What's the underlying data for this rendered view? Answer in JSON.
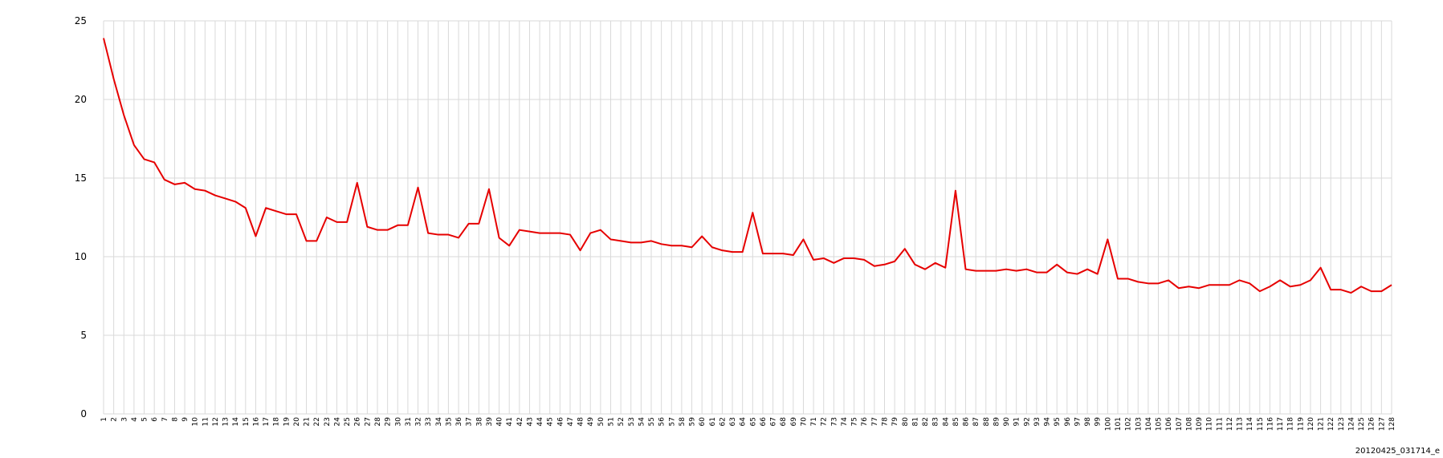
{
  "chart_data": {
    "type": "line",
    "title": "",
    "xlabel": "",
    "ylabel": "",
    "ylim": [
      0,
      25
    ],
    "y_ticks": [
      0,
      5,
      10,
      15,
      20,
      25
    ],
    "grid": true,
    "line_color": "#e60000",
    "x": [
      1,
      2,
      3,
      4,
      5,
      6,
      7,
      8,
      9,
      10,
      11,
      12,
      13,
      14,
      15,
      16,
      17,
      18,
      19,
      20,
      21,
      22,
      23,
      24,
      25,
      26,
      27,
      28,
      29,
      30,
      31,
      32,
      33,
      34,
      35,
      36,
      37,
      38,
      39,
      40,
      41,
      42,
      43,
      44,
      45,
      46,
      47,
      48,
      49,
      50,
      51,
      52,
      53,
      54,
      55,
      56,
      57,
      58,
      59,
      60,
      61,
      62,
      63,
      64,
      65,
      66,
      67,
      68,
      69,
      70,
      71,
      72,
      73,
      74,
      75,
      76,
      77,
      78,
      79,
      80,
      81,
      82,
      83,
      84,
      85,
      86,
      87,
      88,
      89,
      90,
      91,
      92,
      93,
      94,
      95,
      96,
      97,
      98,
      99,
      100,
      101,
      102,
      103,
      104,
      105,
      106,
      107,
      108,
      109,
      110,
      111,
      112,
      113,
      114,
      115,
      116,
      117,
      118,
      119,
      120,
      121,
      122,
      123,
      124,
      125,
      126,
      127,
      128
    ],
    "series": [
      {
        "values": [
          23.9,
          21.3,
          19.0,
          17.1,
          16.2,
          16.0,
          14.9,
          14.6,
          14.7,
          14.3,
          14.2,
          13.9,
          13.7,
          13.5,
          13.1,
          11.3,
          13.1,
          12.9,
          12.7,
          12.7,
          11.0,
          11.0,
          12.5,
          12.2,
          12.2,
          14.7,
          11.9,
          11.7,
          11.7,
          12.0,
          12.0,
          14.4,
          11.5,
          11.4,
          11.4,
          11.2,
          12.1,
          12.1,
          14.3,
          11.2,
          10.7,
          11.7,
          11.6,
          11.5,
          11.5,
          11.5,
          11.4,
          10.4,
          11.5,
          11.7,
          11.1,
          11.0,
          10.9,
          10.9,
          11.0,
          10.8,
          10.7,
          10.7,
          10.6,
          11.3,
          10.6,
          10.4,
          10.3,
          10.3,
          12.8,
          10.2,
          10.2,
          10.2,
          10.1,
          11.1,
          9.8,
          9.9,
          9.6,
          9.9,
          9.9,
          9.8,
          9.4,
          9.5,
          9.7,
          10.5,
          9.5,
          9.2,
          9.6,
          9.3,
          14.2,
          9.2,
          9.1,
          9.1,
          9.1,
          9.2,
          9.1,
          9.2,
          9.0,
          9.0,
          9.5,
          9.0,
          8.9,
          9.2,
          8.9,
          11.1,
          8.6,
          8.6,
          8.4,
          8.3,
          8.3,
          8.5,
          8.0,
          8.1,
          8.0,
          8.2,
          8.2,
          8.2,
          8.5,
          8.3,
          7.8,
          8.1,
          8.5,
          8.1,
          8.2,
          8.5,
          9.3,
          7.9,
          7.9,
          7.7,
          8.1,
          7.8,
          7.8,
          8.2
        ]
      }
    ]
  },
  "caption": "20120425_031714_e"
}
